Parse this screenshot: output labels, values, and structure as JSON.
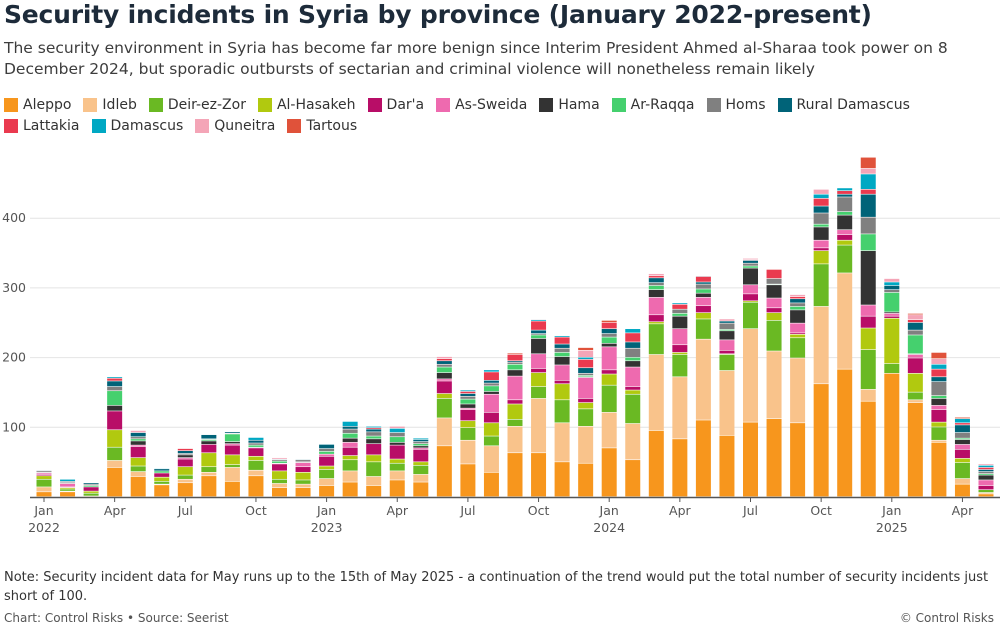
{
  "header": {
    "title": "Security incidents in Syria by province (January 2022-present)",
    "subtitle": "The security environment in Syria has become far more benign since Interim President Ahmed al-Sharaa took power on 8 December 2024, but sporadic outbursts of sectarian and criminal violence will nonetheless remain likely"
  },
  "footer": {
    "note": "Note: Security incident data for May runs up to the 15th of May 2025 - a continuation of the trend would put the total number of security incidents just short of 100.",
    "credit": "Chart: Control Risks • Source: Seerist",
    "copyright": "© Control Risks"
  },
  "chart_data": {
    "type": "bar",
    "stacked": true,
    "ylim": [
      0,
      500
    ],
    "yticks": [
      100,
      200,
      300,
      400
    ],
    "grid": true,
    "legend_position": "top",
    "categories": [
      "Jan 2022",
      "Feb 2022",
      "Mar 2022",
      "Apr 2022",
      "May 2022",
      "Jun 2022",
      "Jul 2022",
      "Aug 2022",
      "Sep 2022",
      "Oct 2022",
      "Nov 2022",
      "Dec 2022",
      "Jan 2023",
      "Feb 2023",
      "Mar 2023",
      "Apr 2023",
      "May 2023",
      "Jun 2023",
      "Jul 2023",
      "Aug 2023",
      "Sep 2023",
      "Oct 2023",
      "Nov 2023",
      "Dec 2023",
      "Jan 2024",
      "Feb 2024",
      "Mar 2024",
      "Apr 2024",
      "May 2024",
      "Jun 2024",
      "Jul 2024",
      "Aug 2024",
      "Sep 2024",
      "Oct 2024",
      "Nov 2024",
      "Dec 2024",
      "Jan 2025",
      "Feb 2025",
      "Mar 2025",
      "Apr 2025",
      "May 2025"
    ],
    "xticks": [
      {
        "month": "Jan 2022",
        "label": "Jan",
        "sub": "2022"
      },
      {
        "month": "Apr 2022",
        "label": "Apr",
        "sub": ""
      },
      {
        "month": "Jul 2022",
        "label": "Jul",
        "sub": ""
      },
      {
        "month": "Oct 2022",
        "label": "Oct",
        "sub": ""
      },
      {
        "month": "Jan 2023",
        "label": "Jan",
        "sub": "2023"
      },
      {
        "month": "Apr 2023",
        "label": "Apr",
        "sub": ""
      },
      {
        "month": "Jul 2023",
        "label": "Jul",
        "sub": ""
      },
      {
        "month": "Oct 2023",
        "label": "Oct",
        "sub": ""
      },
      {
        "month": "Jan 2024",
        "label": "Jan",
        "sub": "2024"
      },
      {
        "month": "Apr 2024",
        "label": "Apr",
        "sub": ""
      },
      {
        "month": "Jul 2024",
        "label": "Jul",
        "sub": ""
      },
      {
        "month": "Oct 2024",
        "label": "Oct",
        "sub": ""
      },
      {
        "month": "Jan 2025",
        "label": "Jan",
        "sub": "2025"
      },
      {
        "month": "Apr 2025",
        "label": "Apr",
        "sub": ""
      }
    ],
    "series": [
      {
        "name": "Aleppo",
        "color": "#f7961d",
        "values": [
          7,
          7,
          1,
          42,
          29,
          17,
          20,
          30,
          22,
          30,
          13,
          13,
          16,
          21,
          16,
          24,
          21,
          73,
          47,
          35,
          63,
          63,
          50,
          48,
          70,
          53,
          95,
          83,
          110,
          88,
          107,
          112,
          106,
          162,
          183,
          137,
          177,
          135,
          78,
          18,
          4
        ]
      },
      {
        "name": "Idleb",
        "color": "#f9c38b",
        "values": [
          7,
          1,
          0,
          10,
          7,
          1,
          5,
          5,
          20,
          8,
          6,
          5,
          10,
          16,
          13,
          13,
          11,
          40,
          34,
          38,
          38,
          78,
          56,
          53,
          51,
          52,
          109,
          89,
          116,
          93,
          134,
          97,
          93,
          111,
          138,
          17,
          0,
          4,
          3,
          8,
          2
        ]
      },
      {
        "name": "Deir-ez-Zor",
        "color": "#6ab923",
        "values": [
          11,
          3,
          4,
          19,
          8,
          4,
          6,
          8,
          4,
          14,
          6,
          6,
          13,
          16,
          21,
          11,
          13,
          28,
          18,
          14,
          10,
          17,
          33,
          25,
          39,
          42,
          44,
          32,
          29,
          23,
          38,
          44,
          29,
          61,
          40,
          57,
          14,
          11,
          19,
          23,
          4
        ]
      },
      {
        "name": "Al-Hasakeh",
        "color": "#b1c90f",
        "values": [
          5,
          2,
          3,
          25,
          12,
          6,
          12,
          20,
          14,
          6,
          12,
          11,
          5,
          6,
          10,
          6,
          5,
          7,
          10,
          19,
          22,
          20,
          23,
          9,
          16,
          6,
          3,
          3,
          9,
          1,
          2,
          11,
          5,
          19,
          7,
          31,
          65,
          27,
          7,
          6,
          0
        ]
      },
      {
        "name": "Dar'a",
        "color": "#b80d67",
        "values": [
          2,
          1,
          6,
          27,
          16,
          6,
          11,
          12,
          14,
          12,
          10,
          8,
          14,
          12,
          16,
          20,
          18,
          18,
          16,
          15,
          6,
          6,
          5,
          6,
          6,
          5,
          10,
          11,
          10,
          5,
          10,
          7,
          2,
          4,
          8,
          17,
          3,
          22,
          18,
          13,
          6
        ]
      },
      {
        "name": "As-Sweida",
        "color": "#ee6aaf",
        "values": [
          2,
          5,
          0,
          0,
          2,
          0,
          2,
          0,
          2,
          0,
          1,
          6,
          3,
          7,
          0,
          0,
          2,
          3,
          2,
          26,
          34,
          21,
          22,
          30,
          33,
          28,
          25,
          23,
          12,
          15,
          13,
          14,
          14,
          11,
          7,
          16,
          4,
          5,
          6,
          7,
          8
        ]
      },
      {
        "name": "Hama",
        "color": "#333333",
        "values": [
          1,
          0,
          0,
          8,
          6,
          0,
          4,
          5,
          3,
          1,
          0,
          0,
          0,
          6,
          7,
          4,
          3,
          9,
          6,
          4,
          9,
          22,
          12,
          1,
          5,
          9,
          11,
          18,
          6,
          13,
          24,
          19,
          19,
          19,
          21,
          78,
          2,
          1,
          10,
          7,
          7
        ]
      },
      {
        "name": "Ar-Raqqa",
        "color": "#45d06e",
        "values": [
          0,
          1,
          2,
          21,
          3,
          3,
          0,
          2,
          11,
          3,
          3,
          1,
          4,
          7,
          4,
          8,
          3,
          8,
          7,
          8,
          8,
          5,
          6,
          2,
          9,
          5,
          6,
          4,
          6,
          2,
          3,
          1,
          5,
          4,
          5,
          24,
          28,
          27,
          4,
          2,
          2
        ]
      },
      {
        "name": "Homs",
        "color": "#808080",
        "values": [
          2,
          2,
          2,
          6,
          3,
          0,
          2,
          1,
          1,
          3,
          2,
          3,
          4,
          6,
          6,
          6,
          3,
          4,
          4,
          4,
          3,
          2,
          6,
          3,
          5,
          13,
          4,
          6,
          7,
          9,
          4,
          8,
          5,
          16,
          21,
          24,
          4,
          7,
          20,
          8,
          3
        ]
      },
      {
        "name": "Rural Damascus",
        "color": "#006378",
        "values": [
          1,
          0,
          2,
          8,
          6,
          3,
          4,
          6,
          2,
          4,
          1,
          1,
          6,
          4,
          4,
          0,
          3,
          5,
          4,
          4,
          2,
          5,
          6,
          8,
          7,
          9,
          7,
          0,
          3,
          3,
          4,
          0,
          6,
          10,
          4,
          33,
          6,
          11,
          7,
          11,
          3
        ]
      },
      {
        "name": "Lattakia",
        "color": "#ea3a4f",
        "values": [
          0,
          0,
          0,
          4,
          0,
          0,
          3,
          0,
          0,
          0,
          0,
          0,
          0,
          0,
          2,
          0,
          0,
          3,
          3,
          12,
          9,
          13,
          10,
          12,
          9,
          13,
          3,
          7,
          8,
          0,
          1,
          13,
          3,
          11,
          5,
          7,
          0,
          4,
          11,
          3,
          3
        ]
      },
      {
        "name": "Damascus",
        "color": "#00a8c3",
        "values": [
          0,
          3,
          0,
          2,
          0,
          1,
          0,
          0,
          0,
          4,
          0,
          0,
          1,
          7,
          2,
          6,
          2,
          0,
          2,
          3,
          0,
          2,
          2,
          3,
          0,
          6,
          0,
          2,
          1,
          0,
          0,
          0,
          0,
          6,
          4,
          22,
          5,
          0,
          7,
          6,
          3
        ]
      },
      {
        "name": "Quneitra",
        "color": "#f4a5b7",
        "values": [
          0,
          0,
          0,
          0,
          3,
          0,
          1,
          0,
          0,
          0,
          2,
          0,
          0,
          0,
          0,
          3,
          0,
          3,
          0,
          0,
          0,
          1,
          0,
          10,
          0,
          0,
          3,
          0,
          0,
          3,
          2,
          0,
          3,
          7,
          0,
          8,
          5,
          7,
          8,
          0,
          2
        ]
      },
      {
        "name": "Tartous",
        "color": "#e0523a",
        "values": [
          0,
          0,
          0,
          0,
          0,
          0,
          0,
          0,
          0,
          0,
          0,
          0,
          0,
          0,
          0,
          0,
          0,
          0,
          0,
          0,
          2,
          0,
          0,
          4,
          3,
          0,
          0,
          0,
          0,
          0,
          0,
          1,
          0,
          0,
          0,
          16,
          0,
          2,
          9,
          2,
          0
        ]
      }
    ]
  }
}
